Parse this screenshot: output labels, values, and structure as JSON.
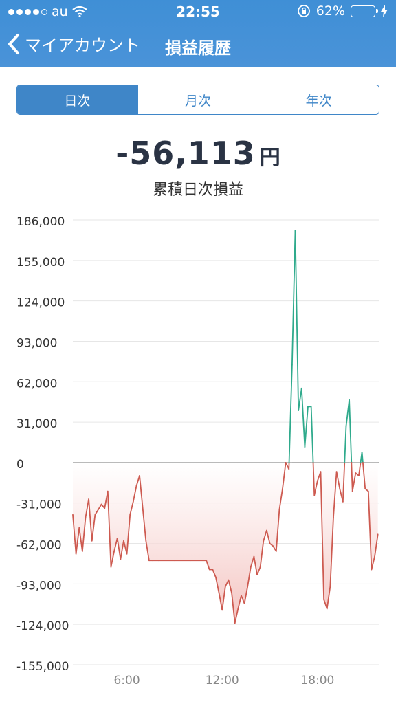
{
  "status_bar": {
    "carrier": "au",
    "time": "22:55",
    "battery": "62%",
    "battery_level": 0.62
  },
  "nav": {
    "back_label": "マイアカウント",
    "title": "損益履歴"
  },
  "tabs": [
    {
      "label": "日次",
      "active": true
    },
    {
      "label": "月次",
      "active": false
    },
    {
      "label": "年次",
      "active": false
    }
  ],
  "summary": {
    "amount": "-56,113",
    "unit": "円",
    "label": "累積日次損益"
  },
  "colors": {
    "positive": "#2faa8c",
    "negative": "#cd5a50",
    "accent": "#3f86c8"
  },
  "chart_data": {
    "type": "line",
    "title": "",
    "xlabel": "",
    "ylabel": "",
    "y_ticks": [
      "186,000",
      "155,000",
      "124,000",
      "93,000",
      "62,000",
      "31,000",
      "0",
      "-31,000",
      "-62,000",
      "-93,000",
      "-124,000",
      "-155,000"
    ],
    "x_ticks": [
      "6:00",
      "12:00",
      "18:00"
    ],
    "x_tick_hours": [
      6,
      12,
      18
    ],
    "ylim": [
      -155000,
      186000
    ],
    "xlim": [
      2.6,
      21.9
    ],
    "grid": true,
    "series": [
      {
        "x": [
          2.6,
          2.8,
          3.0,
          3.2,
          3.4,
          3.6,
          3.8,
          4.0,
          4.2,
          4.4,
          4.6,
          4.8,
          5.0,
          5.2,
          5.4,
          5.6,
          5.8,
          6.0,
          6.2,
          6.4,
          6.6,
          6.8,
          7.0,
          7.2,
          7.4,
          7.6,
          8.0,
          9.0,
          10.0,
          11.0,
          11.2,
          11.4,
          11.6,
          11.8,
          12.0,
          12.2,
          12.4,
          12.6,
          12.8,
          13.0,
          13.2,
          13.4,
          13.6,
          13.8,
          14.0,
          14.2,
          14.4,
          14.6,
          14.8,
          15.0,
          15.2,
          15.4,
          15.6,
          15.8,
          16.0,
          16.2,
          16.4,
          16.6,
          16.8,
          17.0,
          17.2,
          17.4,
          17.6,
          17.8,
          18.0,
          18.2,
          18.4,
          18.6,
          18.8,
          19.0,
          19.2,
          19.4,
          19.6,
          19.8,
          20.0,
          20.2,
          20.4,
          20.6,
          20.8,
          21.0,
          21.2,
          21.4,
          21.6,
          21.8
        ],
        "y": [
          -40000,
          -70000,
          -50000,
          -68000,
          -42000,
          -28000,
          -60000,
          -40000,
          -36000,
          -32000,
          -35000,
          -22000,
          -80000,
          -68000,
          -58000,
          -74000,
          -60000,
          -70000,
          -40000,
          -30000,
          -18000,
          -10000,
          -35000,
          -60000,
          -75000,
          -75000,
          -75000,
          -75000,
          -75000,
          -75000,
          -82000,
          -82000,
          -88000,
          -100000,
          -113000,
          -95000,
          -90000,
          -100000,
          -123000,
          -112000,
          -102000,
          -108000,
          -95000,
          -80000,
          -72000,
          -86000,
          -80000,
          -60000,
          -52000,
          -62000,
          -64000,
          -68000,
          -36000,
          -20000,
          0,
          -5000,
          75000,
          178000,
          40000,
          57000,
          12000,
          43000,
          43000,
          -25000,
          -14000,
          -7000,
          -105000,
          -112000,
          -95000,
          -42000,
          -7000,
          -20000,
          -30000,
          28000,
          48000,
          -22000,
          -8000,
          -10000,
          8000,
          -20000,
          -22000,
          -82000,
          -72000,
          -55000
        ]
      }
    ]
  }
}
